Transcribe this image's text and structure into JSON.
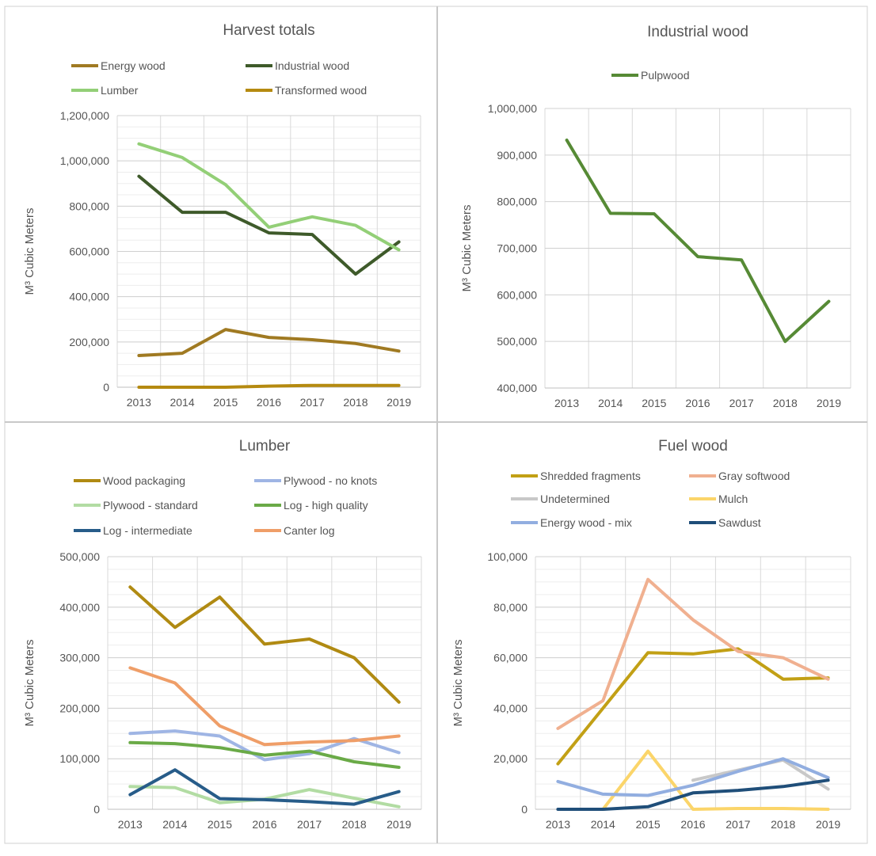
{
  "chart_data": [
    {
      "id": "harvest",
      "type": "line",
      "title": "Harvest totals",
      "xlabel": "",
      "ylabel": "M³ Cubic Meters",
      "x": [
        "2013",
        "2014",
        "2015",
        "2016",
        "2017",
        "2018",
        "2019"
      ],
      "ylim": [
        0,
        1200000
      ],
      "ystep": 200000,
      "yminor": 50000,
      "grid": true,
      "legend_position": "top",
      "series": [
        {
          "name": "Energy wood",
          "color": "#a07a22",
          "values": [
            140000,
            150000,
            255000,
            220000,
            210000,
            193000,
            160000
          ]
        },
        {
          "name": "Industrial wood",
          "color": "#3e5a2a",
          "values": [
            932000,
            773000,
            773000,
            682000,
            675000,
            500000,
            642000
          ]
        },
        {
          "name": "Lumber",
          "color": "#93cf77",
          "values": [
            1075000,
            1015000,
            895000,
            707000,
            753000,
            715000,
            607000
          ]
        },
        {
          "name": "Transformed wood",
          "color": "#b58a10",
          "values": [
            0,
            0,
            0,
            5000,
            8000,
            8000,
            8000
          ]
        }
      ]
    },
    {
      "id": "industrial",
      "type": "line",
      "title": "Industrial wood",
      "xlabel": "",
      "ylabel": "M³ Cubic Meters",
      "x": [
        "2013",
        "2014",
        "2015",
        "2016",
        "2017",
        "2018",
        "2019"
      ],
      "ylim": [
        400000,
        1000000
      ],
      "ystep": 100000,
      "yminor": 0,
      "grid": true,
      "legend_position": "top",
      "series": [
        {
          "name": "Pulpwood",
          "color": "#568a35",
          "values": [
            932000,
            775000,
            774000,
            682000,
            675000,
            500000,
            586000
          ]
        }
      ]
    },
    {
      "id": "lumber",
      "type": "line",
      "title": "Lumber",
      "xlabel": "",
      "ylabel": "M³ Cubic Meters",
      "x": [
        "2013",
        "2014",
        "2015",
        "2016",
        "2017",
        "2018",
        "2019"
      ],
      "ylim": [
        0,
        500000
      ],
      "ystep": 100000,
      "yminor": 25000,
      "grid": true,
      "legend_position": "top",
      "series": [
        {
          "name": "Wood packaging",
          "color": "#b08a12",
          "values": [
            440000,
            360000,
            420000,
            327000,
            337000,
            300000,
            212000
          ]
        },
        {
          "name": "Plywood - no knots",
          "color": "#9fb5e4",
          "values": [
            150000,
            155000,
            145000,
            98000,
            110000,
            140000,
            112000
          ]
        },
        {
          "name": "Plywood - standard",
          "color": "#b2dca3",
          "values": [
            45000,
            43000,
            13000,
            20000,
            39000,
            22000,
            5000
          ]
        },
        {
          "name": "Log - high quality",
          "color": "#6aaa47",
          "values": [
            132000,
            130000,
            122000,
            107000,
            115000,
            94000,
            83000
          ]
        },
        {
          "name": "Log - intermediate",
          "color": "#275c89",
          "values": [
            29000,
            78000,
            21000,
            19000,
            15000,
            10000,
            35000
          ]
        },
        {
          "name": "Canter log",
          "color": "#ef9e68",
          "values": [
            280000,
            250000,
            165000,
            128000,
            133000,
            136000,
            145000
          ]
        }
      ]
    },
    {
      "id": "fuel",
      "type": "line",
      "title": "Fuel wood",
      "xlabel": "",
      "ylabel": "M³ Cubic Meters",
      "x": [
        "2013",
        "2014",
        "2015",
        "2016",
        "2017",
        "2018",
        "2019"
      ],
      "ylim": [
        0,
        100000
      ],
      "ystep": 20000,
      "yminor": 5000,
      "grid": true,
      "legend_position": "top",
      "series": [
        {
          "name": "Shredded fragments",
          "color": "#c2a015",
          "values": [
            18000,
            40000,
            62000,
            61500,
            63500,
            51500,
            52000
          ]
        },
        {
          "name": "Gray softwood",
          "color": "#f0b090",
          "values": [
            32000,
            43000,
            91000,
            75000,
            62500,
            60000,
            51500
          ]
        },
        {
          "name": "Undetermined",
          "color": "#c8c8c8",
          "values": [
            null,
            null,
            null,
            11500,
            15500,
            19500,
            8000
          ]
        },
        {
          "name": "Mulch",
          "color": "#fbd56a",
          "values": [
            null,
            0,
            23000,
            0,
            300,
            300,
            0
          ]
        },
        {
          "name": "Energy wood - mix",
          "color": "#92aee0",
          "values": [
            11000,
            6000,
            5500,
            9500,
            15000,
            20000,
            12500
          ]
        },
        {
          "name": "Sawdust",
          "color": "#1f4e79",
          "values": [
            0,
            0,
            1000,
            6500,
            7500,
            9000,
            11500
          ]
        }
      ]
    }
  ]
}
